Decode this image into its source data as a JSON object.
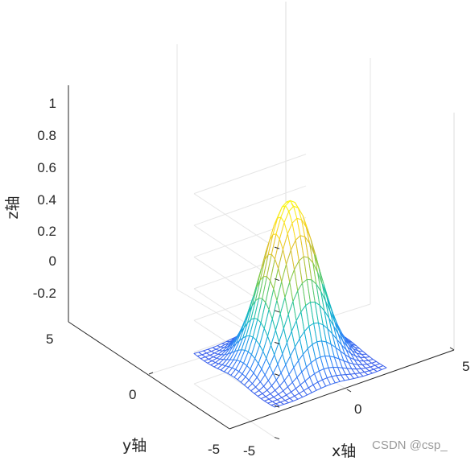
{
  "chart_data": {
    "type": "surface-mesh",
    "function": "z = cos(0.3*sqrt(x^2+y^2)) * exp(-0.08*(x^2+y^2))",
    "x_range": [
      -5,
      5
    ],
    "y_range": [
      -5,
      5
    ],
    "zlim": [
      -0.3,
      1.1
    ],
    "grid_points": 25,
    "xlabel": "x轴",
    "ylabel": "y轴",
    "zlabel": "z轴",
    "x_ticks": [
      "-5",
      "0",
      "5"
    ],
    "y_ticks": [
      "-5",
      "0",
      "5"
    ],
    "z_ticks": [
      "-0.2",
      "0",
      "0.2",
      "0.4",
      "0.6",
      "0.8",
      "1"
    ],
    "colormap": [
      "#3e26a8",
      "#4455e8",
      "#2e87f7",
      "#14b0d6",
      "#25c5a0",
      "#82cc4c",
      "#d8ba30",
      "#fadb24",
      "#f9fb15"
    ],
    "grid": true,
    "view": "3d-default"
  },
  "watermark": "CSDN @csp_"
}
